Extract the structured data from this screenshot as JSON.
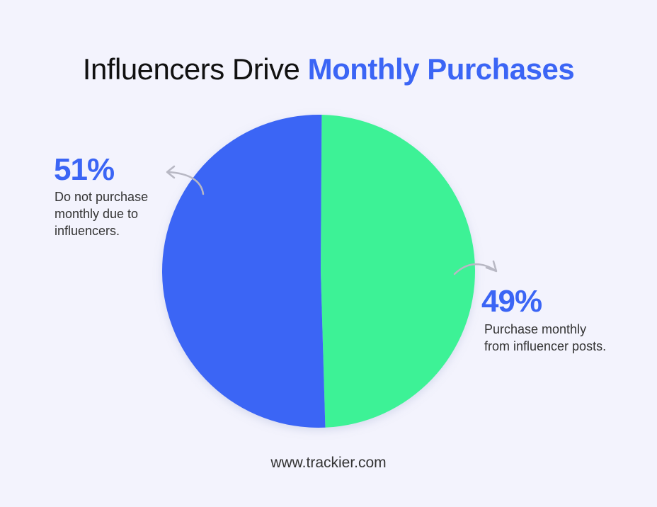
{
  "title": {
    "plain": "Influencers Drive",
    "highlight": "Monthly Purchases"
  },
  "chart_data": {
    "type": "pie",
    "title": "Influencers Drive Monthly Purchases",
    "slices": [
      {
        "label": "Do not purchase monthly due to influencers.",
        "value": 51,
        "display": "51%",
        "color": "#3b65f5"
      },
      {
        "label": "Purchase monthly from influencer posts.",
        "value": 49,
        "display": "49%",
        "color": "#3df296"
      }
    ],
    "legend": "none",
    "grid": false
  },
  "annotations": {
    "left": {
      "percent": "51%",
      "text": "Do not purchase monthly due to influencers."
    },
    "right": {
      "percent": "49%",
      "text": "Purchase monthly from influencer posts."
    }
  },
  "footer": "www.trackier.com",
  "colors": {
    "accent": "#3b65f5",
    "green": "#3df296",
    "background": "#f3f3fd",
    "arrow": "#b8b8c4"
  }
}
